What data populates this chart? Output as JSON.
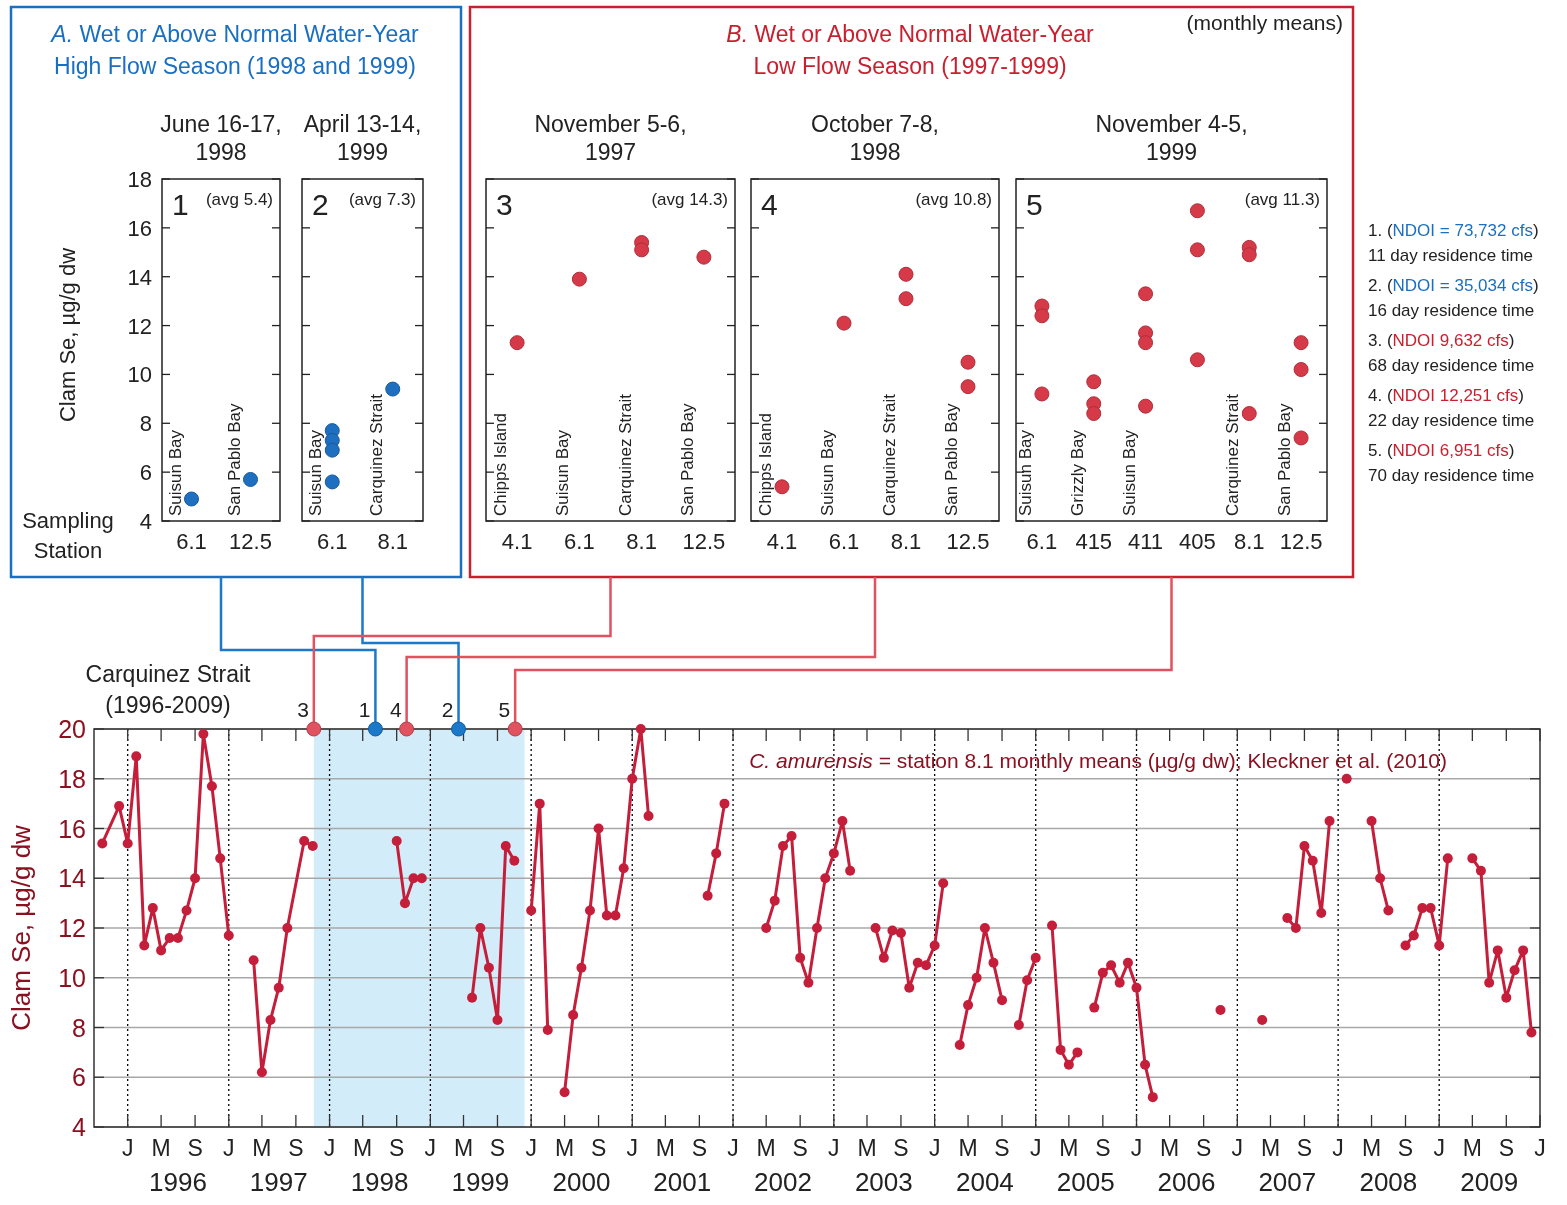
{
  "chart_data": [
    {
      "type": "other",
      "title": "A. Wet or Above Normal Water-Year",
      "subtitle": "High Flow Season (1998 and 1999)"
    },
    {
      "type": "scatter",
      "title": "June 16-17, 1998",
      "xlabel": "Sampling Station",
      "ylabel": "Clam Se, µg/g dw",
      "categories": [
        "6.1",
        "12.5"
      ],
      "marker": "circle",
      "ylim": [
        4,
        18
      ],
      "yticks": [
        4,
        6,
        8,
        10,
        12,
        14,
        16,
        18
      ],
      "series": [
        {
          "color": "#1f6fc0",
          "values": [
            4.9,
            5.7
          ]
        }
      ],
      "annotations": [
        "1",
        "(avg 5.4)",
        "Suisun Bay",
        "San Pablo Bay"
      ]
    },
    {
      "type": "scatter",
      "title": "April 13-14, 1999",
      "categories": [
        "6.1",
        "8.1"
      ],
      "marker": "circle",
      "ylim": [
        4,
        18
      ],
      "yticks": [
        4,
        6,
        8,
        10,
        12,
        14,
        16,
        18
      ],
      "tick_labels": "x",
      "series": [
        {
          "color": "#1f6fc0",
          "values": [
            7.7,
            9.4
          ]
        },
        {
          "color": "#1f6fc0",
          "values": [
            7.3,
            null
          ]
        },
        {
          "color": "#1f6fc0",
          "values": [
            6.9,
            null
          ]
        },
        {
          "color": "#1f6fc0",
          "values": [
            5.6,
            null
          ]
        }
      ],
      "annotations": [
        "2",
        "(avg 7.3)",
        "Suisun Bay",
        "Carquinez Strait"
      ]
    },
    {
      "type": "other",
      "title": "B. Wet or Above Normal Water-Year",
      "subtitle": "Low Flow Season (1997-1999)",
      "annotations": [
        "(monthly means)"
      ]
    },
    {
      "type": "scatter",
      "title": "November 5-6, 1997",
      "categories": [
        "4.1",
        "6.1",
        "8.1",
        "12.5"
      ],
      "marker": "circle",
      "ylim": [
        4,
        18
      ],
      "yticks": [
        4,
        6,
        8,
        10,
        12,
        14,
        16,
        18
      ],
      "tick_labels": "x",
      "series": [
        {
          "color": "#d63a48",
          "values": [
            11.3,
            13.9,
            15.4,
            14.8
          ]
        },
        {
          "color": "#d63a48",
          "values": [
            null,
            null,
            15.1,
            null
          ]
        }
      ],
      "annotations": [
        "3",
        "(avg 14.3)",
        "Chipps Island",
        "Suisun Bay",
        "Carquinez Strait",
        "San Pablo Bay"
      ]
    },
    {
      "type": "scatter",
      "title": "October 7-8, 1998",
      "categories": [
        "4.1",
        "6.1",
        "8.1",
        "12.5"
      ],
      "marker": "circle",
      "ylim": [
        4,
        18
      ],
      "yticks": [
        4,
        6,
        8,
        10,
        12,
        14,
        16,
        18
      ],
      "tick_labels": "x",
      "series": [
        {
          "color": "#d63a48",
          "values": [
            5.4,
            12.1,
            14.1,
            10.5
          ]
        },
        {
          "color": "#d63a48",
          "values": [
            null,
            null,
            13.1,
            9.5
          ]
        }
      ],
      "annotations": [
        "4",
        "(avg 10.8)",
        "Chipps Island",
        "Suisun Bay",
        "Carquinez Strait",
        "San Pablo Bay"
      ]
    },
    {
      "type": "scatter",
      "title": "November 4-5, 1999",
      "categories": [
        "6.1",
        "415",
        "411",
        "405",
        "8.1",
        "12.5"
      ],
      "marker": "circle",
      "ylim": [
        4,
        18
      ],
      "yticks": [
        4,
        6,
        8,
        10,
        12,
        14,
        16,
        18
      ],
      "tick_labels": "x",
      "series": [
        {
          "color": "#d63a48",
          "values": [
            12.8,
            9.7,
            13.3,
            16.7,
            15.2,
            11.3
          ]
        },
        {
          "color": "#d63a48",
          "values": [
            12.4,
            8.8,
            11.7,
            15.1,
            14.9,
            10.2
          ]
        },
        {
          "color": "#d63a48",
          "values": [
            9.2,
            8.4,
            11.3,
            10.6,
            8.4,
            7.4
          ]
        },
        {
          "color": "#d63a48",
          "values": [
            null,
            null,
            8.7,
            null,
            null,
            null
          ]
        }
      ],
      "annotations": [
        "5",
        "(avg 11.3)",
        "Suisun Bay",
        "Grizzly Bay",
        "Suisun Bay",
        "Carquinez Strait",
        "San Pablo Bay",
        "1. (NDOI = 73,732 cfs)",
        "11 day residence time",
        "2. (NDOI = 35,034 cfs)",
        "16 day residence time",
        "3. (NDOI 9,632 cfs)",
        "68 day residence time",
        "4. (NDOI 12,251 cfs)",
        "22 day residence time",
        "5. (NDOI 6,951 cfs)",
        "70 day residence time"
      ]
    },
    {
      "type": "line",
      "title": "Carquinez Strait (1996-2009)",
      "ylabel": "Clam Se, µg/g dw",
      "marker": "circle",
      "grid": "y",
      "xlim": [
        "1995-09",
        "2010-01"
      ],
      "ylim": [
        4,
        20
      ],
      "yticks": [
        4,
        6,
        8,
        10,
        12,
        14,
        16,
        18,
        20
      ],
      "xticks": [
        {
          "value": "1996-01",
          "label": null
        },
        {
          "value": "1996-05",
          "label": null
        },
        {
          "value": "1996-09",
          "label": null
        },
        {
          "value": "1997-01",
          "label": null
        },
        {
          "value": "1997-05",
          "label": null
        },
        {
          "value": "1997-09",
          "label": null
        },
        {
          "value": "1998-01",
          "label": null
        },
        {
          "value": "1998-05",
          "label": null
        },
        {
          "value": "1998-09",
          "label": null
        },
        {
          "value": "1999-01",
          "label": null
        },
        {
          "value": "1999-05",
          "label": null
        },
        {
          "value": "1999-09",
          "label": null
        },
        {
          "value": "2000-01",
          "label": null
        },
        {
          "value": "2000-05",
          "label": null
        },
        {
          "value": "2000-09",
          "label": null
        },
        {
          "value": "2001-01",
          "label": null
        },
        {
          "value": "2001-05",
          "label": null
        },
        {
          "value": "2001-09",
          "label": null
        },
        {
          "value": "2002-01",
          "label": null
        },
        {
          "value": "2002-05",
          "label": null
        },
        {
          "value": "2002-09",
          "label": null
        },
        {
          "value": "2003-01",
          "label": null
        },
        {
          "value": "2003-05",
          "label": null
        },
        {
          "value": "2003-09",
          "label": null
        },
        {
          "value": "2004-01",
          "label": null
        },
        {
          "value": "2004-05",
          "label": null
        },
        {
          "value": "2004-09",
          "label": null
        },
        {
          "value": "2005-01",
          "label": null
        },
        {
          "value": "2005-05",
          "label": null
        },
        {
          "value": "2005-09",
          "label": null
        },
        {
          "value": "2006-01",
          "label": null
        },
        {
          "value": "2006-05",
          "label": null
        },
        {
          "value": "2006-09",
          "label": null
        },
        {
          "value": "2007-01",
          "label": null
        },
        {
          "value": "2007-05",
          "label": null
        },
        {
          "value": "2007-09",
          "label": null
        },
        {
          "value": "2008-01",
          "label": null
        },
        {
          "value": "2008-05",
          "label": null
        },
        {
          "value": "2008-09",
          "label": null
        },
        {
          "value": "2009-01",
          "label": null
        },
        {
          "value": "2009-05",
          "label": null
        },
        {
          "value": "2009-09",
          "label": null
        },
        {
          "value": "2010-01",
          "label": null
        },
        {
          "value": "1996-07-01",
          "label": "1996"
        },
        {
          "value": "1997-07-01",
          "label": "1997"
        },
        {
          "value": "1998-07-01",
          "label": "1998"
        },
        {
          "value": "1999-07-01",
          "label": "1999"
        },
        {
          "value": "2000-07-01",
          "label": "2000"
        },
        {
          "value": "2001-07-01",
          "label": "2001"
        },
        {
          "value": "2002-07-01",
          "label": "2002"
        },
        {
          "value": "2003-07-01",
          "label": "2003"
        },
        {
          "value": "2004-07-01",
          "label": "2004"
        },
        {
          "value": "2005-07-01",
          "label": "2005"
        },
        {
          "value": "2006-07-01",
          "label": "2006"
        },
        {
          "value": "2007-07-01",
          "label": "2007"
        },
        {
          "value": "2008-07-01",
          "label": "2008"
        },
        {
          "value": "2009-07-01",
          "label": "2009"
        }
      ],
      "bands": [
        {
          "axis": "x",
          "from": "1997-11-05",
          "to": "1999-12-08",
          "color": "#d3ecf9"
        }
      ],
      "ref_lines": [
        {
          "axis": "x",
          "value": "1996-01",
          "line_style": "dotted",
          "color": "#000000"
        },
        {
          "axis": "x",
          "value": "1997-01",
          "line_style": "dotted",
          "color": "#000000"
        },
        {
          "axis": "x",
          "value": "1998-01",
          "line_style": "dotted",
          "color": "#000000"
        },
        {
          "axis": "x",
          "value": "1999-01",
          "line_style": "dotted",
          "color": "#000000"
        },
        {
          "axis": "x",
          "value": "2000-01",
          "line_style": "dotted",
          "color": "#000000"
        },
        {
          "axis": "x",
          "value": "2001-01",
          "line_style": "dotted",
          "color": "#000000"
        },
        {
          "axis": "x",
          "value": "2002-01",
          "line_style": "dotted",
          "color": "#000000"
        },
        {
          "axis": "x",
          "value": "2003-01",
          "line_style": "dotted",
          "color": "#000000"
        },
        {
          "axis": "x",
          "value": "2004-01",
          "line_style": "dotted",
          "color": "#000000"
        },
        {
          "axis": "x",
          "value": "2005-01",
          "line_style": "dotted",
          "color": "#000000"
        },
        {
          "axis": "x",
          "value": "2006-01",
          "line_style": "dotted",
          "color": "#000000"
        },
        {
          "axis": "x",
          "value": "2007-01",
          "line_style": "dotted",
          "color": "#000000"
        },
        {
          "axis": "x",
          "value": "2008-01",
          "line_style": "dotted",
          "color": "#000000"
        },
        {
          "axis": "x",
          "value": "2009-01",
          "line_style": "dotted",
          "color": "#000000"
        }
      ],
      "series": [
        {
          "type": "line",
          "color": "#c41e3a",
          "x": [
            "1995-10",
            "1995-12",
            "1996-01",
            "1996-02",
            "1996-03",
            "1996-04",
            "1996-05",
            "1996-06",
            "1996-07",
            "1996-08",
            "1996-09",
            "1996-10",
            "1996-11",
            "1996-12",
            "1997-01",
            "1997-02",
            "1997-04",
            "1997-05",
            "1997-06",
            "1997-07",
            "1997-08",
            "1997-10",
            "1997-11",
            "1997-12",
            "1998-09",
            "1998-10",
            "1998-11",
            "1998-12",
            "1999-01",
            "1999-06",
            "1999-07",
            "1999-08",
            "1999-09",
            "1999-10",
            "1999-11",
            "1999-12",
            "2000-01",
            "2000-02",
            "2000-03",
            "2000-04",
            "2000-05",
            "2000-06",
            "2000-07",
            "2000-08",
            "2000-09",
            "2000-10",
            "2000-11",
            "2000-12",
            "2001-01",
            "2001-02",
            "2001-03",
            "2001-04",
            "2001-10",
            "2001-11",
            "2001-12",
            "2002-01",
            "2002-05",
            "2002-06",
            "2002-07",
            "2002-08",
            "2002-09",
            "2002-10",
            "2002-11",
            "2002-12",
            "2003-01",
            "2003-02",
            "2003-03",
            "2003-04",
            "2003-06",
            "2003-07",
            "2003-08",
            "2003-09",
            "2003-10",
            "2003-11",
            "2003-12",
            "2004-01",
            "2004-02",
            "2004-03",
            "2004-04",
            "2004-05",
            "2004-06",
            "2004-07",
            "2004-08",
            "2004-09",
            "2004-10",
            "2004-11",
            "2004-12",
            "2005-01",
            "2005-02",
            "2005-03",
            "2005-04",
            "2005-05",
            "2005-06",
            "2005-07",
            "2005-08",
            "2005-09",
            "2005-10",
            "2005-11",
            "2005-12",
            "2006-01",
            "2006-02",
            "2006-03",
            "2006-04",
            "2006-11",
            "2006-12",
            "2007-04",
            "2007-05",
            "2007-07",
            "2007-08",
            "2007-09",
            "2007-10",
            "2007-11",
            "2007-12",
            "2008-01",
            "2008-02",
            "2008-03",
            "2008-05",
            "2008-06",
            "2008-07",
            "2008-08",
            "2008-09",
            "2008-10",
            "2008-11",
            "2008-12",
            "2009-01",
            "2009-02",
            "2009-03",
            "2009-05",
            "2009-06",
            "2009-07",
            "2009-08",
            "2009-09",
            "2009-10",
            "2009-11",
            "2009-12"
          ],
          "values": [
            15.4,
            16.9,
            15.4,
            18.9,
            11.3,
            12.8,
            11.1,
            11.6,
            11.6,
            12.7,
            14.0,
            19.8,
            17.7,
            14.8,
            11.7,
            null,
            10.7,
            6.2,
            8.3,
            9.6,
            12.0,
            15.5,
            15.3,
            null,
            15.5,
            13.0,
            14.0,
            14.0,
            null,
            9.2,
            12.0,
            10.4,
            8.3,
            15.3,
            14.7,
            null,
            12.7,
            17.0,
            7.9,
            null,
            5.4,
            8.5,
            10.4,
            12.7,
            16.0,
            12.5,
            12.5,
            14.4,
            18.0,
            20.0,
            16.5,
            null,
            13.3,
            15.0,
            17.0,
            null,
            12.0,
            13.1,
            15.3,
            15.7,
            10.8,
            9.8,
            12.0,
            14.0,
            15.0,
            16.3,
            14.3,
            null,
            12.0,
            10.8,
            11.9,
            11.8,
            9.6,
            10.6,
            10.5,
            11.3,
            13.8,
            null,
            7.3,
            8.9,
            10.0,
            12.0,
            10.6,
            9.1,
            null,
            8.1,
            9.9,
            10.8,
            null,
            12.1,
            7.1,
            6.5,
            7.0,
            null,
            8.8,
            10.2,
            10.5,
            9.8,
            10.6,
            9.6,
            6.5,
            5.2,
            null,
            8.7,
            null,
            8.3,
            null,
            12.4,
            12.0,
            15.3,
            14.7,
            12.6,
            16.3,
            null,
            18.0,
            null,
            16.3,
            14.0,
            12.7,
            null,
            11.3,
            11.7,
            12.8,
            12.8,
            11.3,
            14.8,
            null,
            14.8,
            14.3,
            9.8,
            11.1,
            9.2,
            10.3,
            11.1,
            7.8
          ]
        },
        {
          "type": "scatter",
          "x": [
            "1998-06-16",
            "1999-04-13",
            "1997-11-05",
            "1998-10-07",
            "1999-11-04"
          ],
          "values": [
            20,
            20,
            20,
            20,
            20
          ],
          "colors": [
            "#1c78c8",
            "#1c78c8",
            "#e05260",
            "#e05260",
            "#e05260"
          ]
        }
      ],
      "annotations": [
        "C. amurensis = station 8.1 monthly means (µg/g dw); Kleckner et al. (2010)",
        "J",
        "M",
        "S",
        "J",
        "M",
        "S",
        "J",
        "M",
        "S",
        "J",
        "M",
        "S",
        "J",
        "M",
        "S",
        "J",
        "M",
        "S",
        "J",
        "M",
        "S",
        "J",
        "M",
        "S",
        "J",
        "M",
        "S",
        "J",
        "M",
        "S",
        "J",
        "M",
        "S",
        "J",
        "M",
        "S",
        "J",
        "M",
        "S",
        "J",
        "M",
        "S",
        "J",
        {
          "text": "1",
          "x": "1998-06-16",
          "y": 20
        },
        {
          "text": "2",
          "x": "1999-04-13",
          "y": 20
        },
        {
          "text": "3",
          "x": "1997-11-05",
          "y": 20
        },
        {
          "text": "4",
          "x": "1998-10-07",
          "y": 20
        },
        {
          "text": "5",
          "x": "1999-11-04",
          "y": 20
        }
      ]
    }
  ]
}
